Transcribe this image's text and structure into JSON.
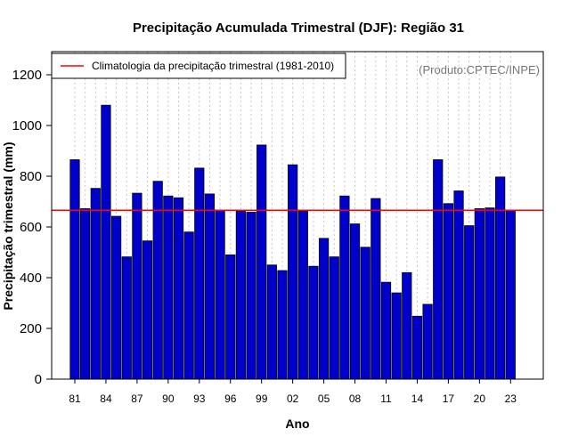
{
  "chart_data": {
    "type": "bar",
    "title": "Precipitação Acumulada Trimestral (DJF): Região 31",
    "xlabel": "Ano",
    "ylabel": "Precipitação trimestral (mm)",
    "ylim": [
      0,
      1250
    ],
    "yticks": [
      0,
      200,
      400,
      600,
      800,
      1000,
      1200
    ],
    "categories": [
      "81",
      "82",
      "83",
      "84",
      "85",
      "86",
      "87",
      "88",
      "89",
      "90",
      "91",
      "92",
      "93",
      "94",
      "95",
      "96",
      "97",
      "98",
      "99",
      "00",
      "01",
      "02",
      "03",
      "04",
      "05",
      "06",
      "07",
      "08",
      "09",
      "10",
      "11",
      "12",
      "13",
      "14",
      "15",
      "16",
      "17",
      "18",
      "19",
      "20",
      "21",
      "22",
      "23"
    ],
    "xtick_labels": [
      "81",
      "84",
      "87",
      "90",
      "93",
      "96",
      "99",
      "02",
      "05",
      "08",
      "11",
      "14",
      "17",
      "20",
      "23"
    ],
    "series": [
      {
        "name": "Precipitação trimestral",
        "color": "#0000cd",
        "values": [
          865,
          672,
          752,
          1080,
          642,
          482,
          733,
          545,
          780,
          722,
          715,
          580,
          832,
          730,
          665,
          490,
          662,
          658,
          923,
          450,
          428,
          845,
          662,
          445,
          555,
          482,
          722,
          612,
          520,
          712,
          382,
          340,
          420,
          248,
          295,
          865,
          692,
          742,
          605,
          672,
          675,
          797,
          665
        ]
      }
    ],
    "reference_line": {
      "label": "Climatologia da precipitação trimestral (1981-2010)",
      "value": 666,
      "color": "#ff0000"
    },
    "legend_position": "top-left",
    "grid": "vertical dotted",
    "credit": "(Produto:CPTEC/INPE)"
  }
}
